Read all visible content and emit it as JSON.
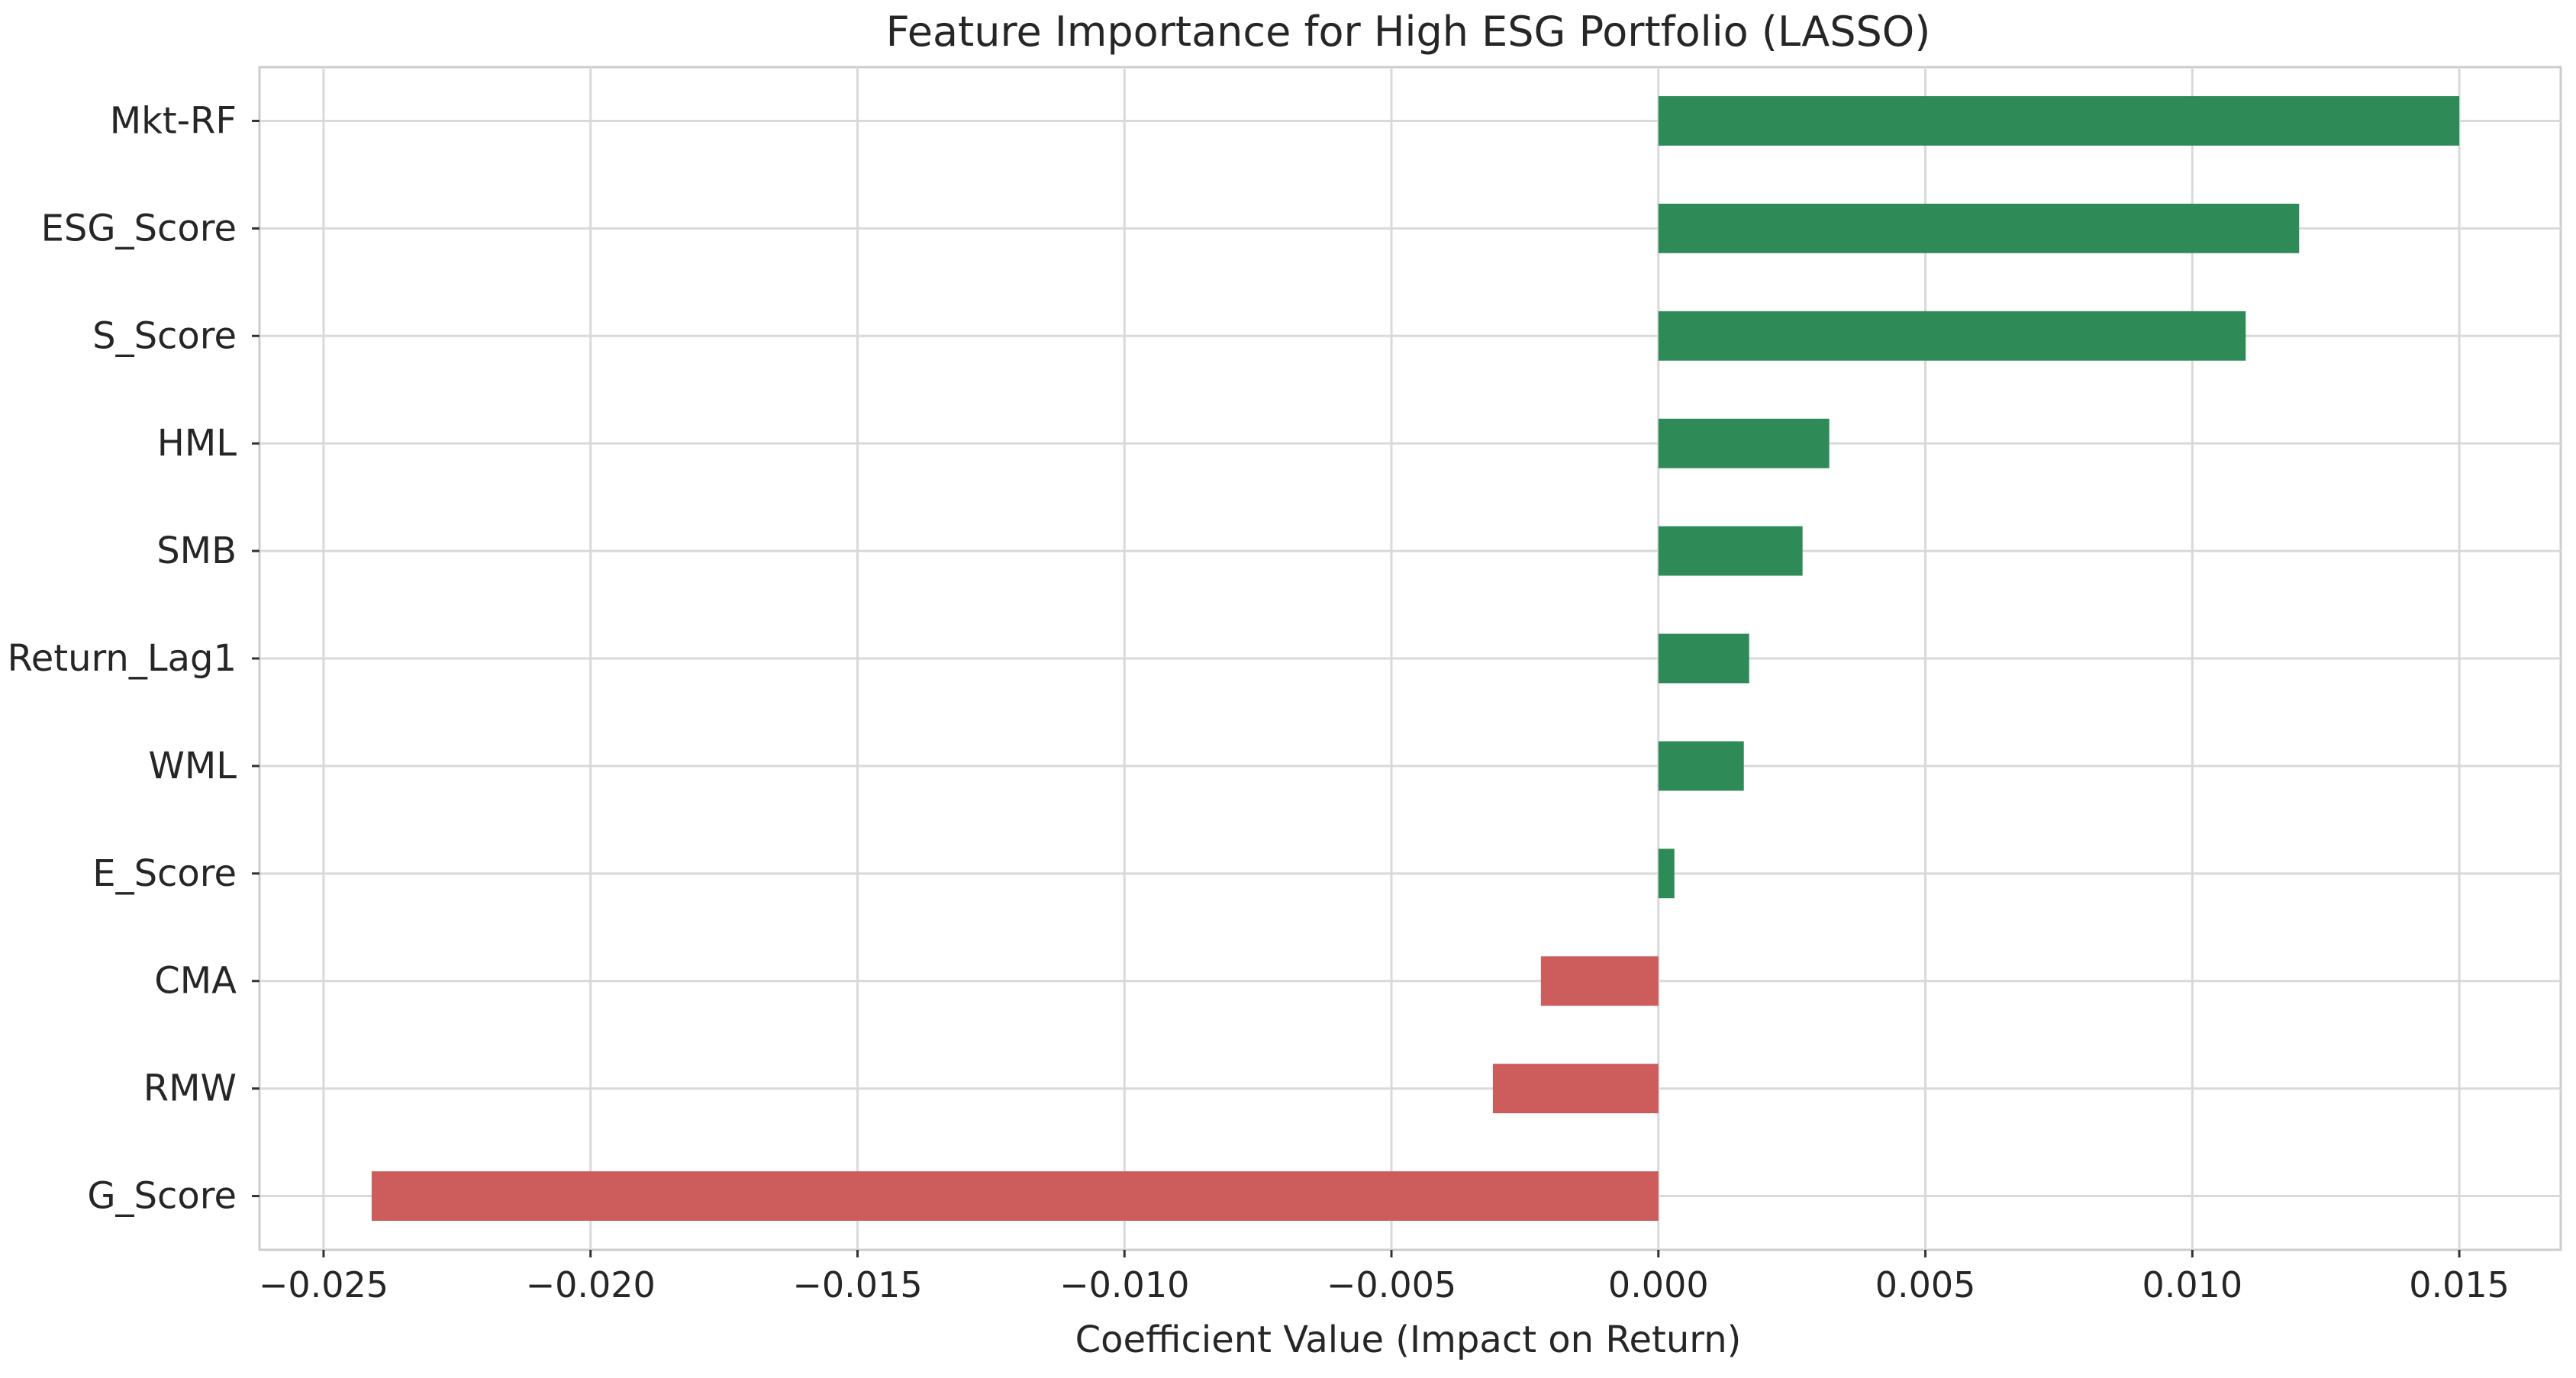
{
  "chart_data": {
    "type": "bar",
    "orientation": "horizontal",
    "title": "Feature Importance for High ESG Portfolio (LASSO)",
    "xlabel": "Coefficient Value (Impact on Return)",
    "ylabel": "",
    "xlim": [
      -0.0262,
      0.0169
    ],
    "x_ticks": [
      -0.025,
      -0.02,
      -0.015,
      -0.01,
      -0.005,
      0.0,
      0.005,
      0.01,
      0.015
    ],
    "x_tick_labels": [
      "−0.025",
      "−0.020",
      "−0.015",
      "−0.010",
      "−0.005",
      "0.000",
      "0.005",
      "0.010",
      "0.015"
    ],
    "grid": true,
    "legend": "none",
    "categories": [
      "Mkt-RF",
      "ESG_Score",
      "S_Score",
      "HML",
      "SMB",
      "Return_Lag1",
      "WML",
      "E_Score",
      "CMA",
      "RMW",
      "G_Score"
    ],
    "values": [
      0.015,
      0.012,
      0.011,
      0.0032,
      0.0027,
      0.0017,
      0.0016,
      0.0003,
      -0.0022,
      -0.0031,
      -0.0241
    ],
    "colors": {
      "positive": "#2e8b57",
      "negative": "#cd5c5c",
      "grid": "#d9d9d9",
      "spine": "#cccccc",
      "text": "#262626"
    }
  }
}
